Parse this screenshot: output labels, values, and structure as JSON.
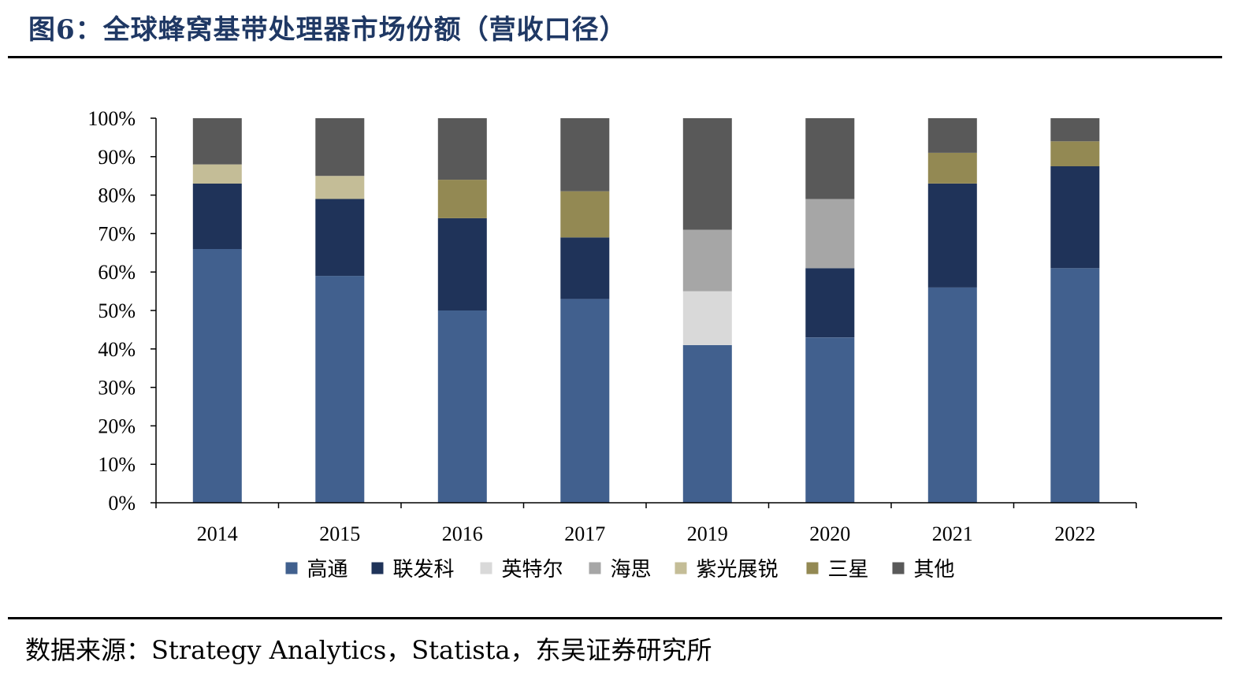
{
  "header": {
    "title": "图6：全球蜂窝基带处理器市场份额（营收口径）"
  },
  "footer": {
    "source": "数据来源：Strategy Analytics，Statista，东吴证券研究所"
  },
  "chart_data": {
    "type": "bar",
    "stacked": true,
    "categories": [
      "2014",
      "2015",
      "2016",
      "2017",
      "2019",
      "2020",
      "2021",
      "2022"
    ],
    "y_ticks": [
      "0%",
      "10%",
      "20%",
      "30%",
      "40%",
      "50%",
      "60%",
      "70%",
      "80%",
      "90%",
      "100%"
    ],
    "ylim": [
      0,
      100
    ],
    "legend_position": "bottom",
    "grid": false,
    "series": [
      {
        "name": "高通",
        "color": "#41608e",
        "values": [
          66,
          59,
          50,
          53,
          41,
          43,
          56,
          61
        ]
      },
      {
        "name": "联发科",
        "color": "#1f3359",
        "values": [
          17,
          20,
          24,
          16,
          0,
          18,
          27,
          26.5
        ]
      },
      {
        "name": "英特尔",
        "color": "#d9d9d9",
        "values": [
          0,
          0,
          0,
          0,
          14,
          0,
          0,
          0
        ]
      },
      {
        "name": "海思",
        "color": "#a6a6a6",
        "values": [
          0,
          0,
          0,
          0,
          16,
          18,
          0,
          0
        ]
      },
      {
        "name": "紫光展锐",
        "color": "#c4bd97",
        "values": [
          5,
          6,
          0,
          0,
          0,
          0,
          0,
          0
        ]
      },
      {
        "name": "三星",
        "color": "#938953",
        "values": [
          0,
          0,
          10,
          12,
          0,
          0,
          8,
          6.5
        ]
      },
      {
        "name": "其他",
        "color": "#595959",
        "values": [
          12,
          15,
          16,
          19,
          29,
          21,
          9,
          6
        ]
      }
    ]
  }
}
